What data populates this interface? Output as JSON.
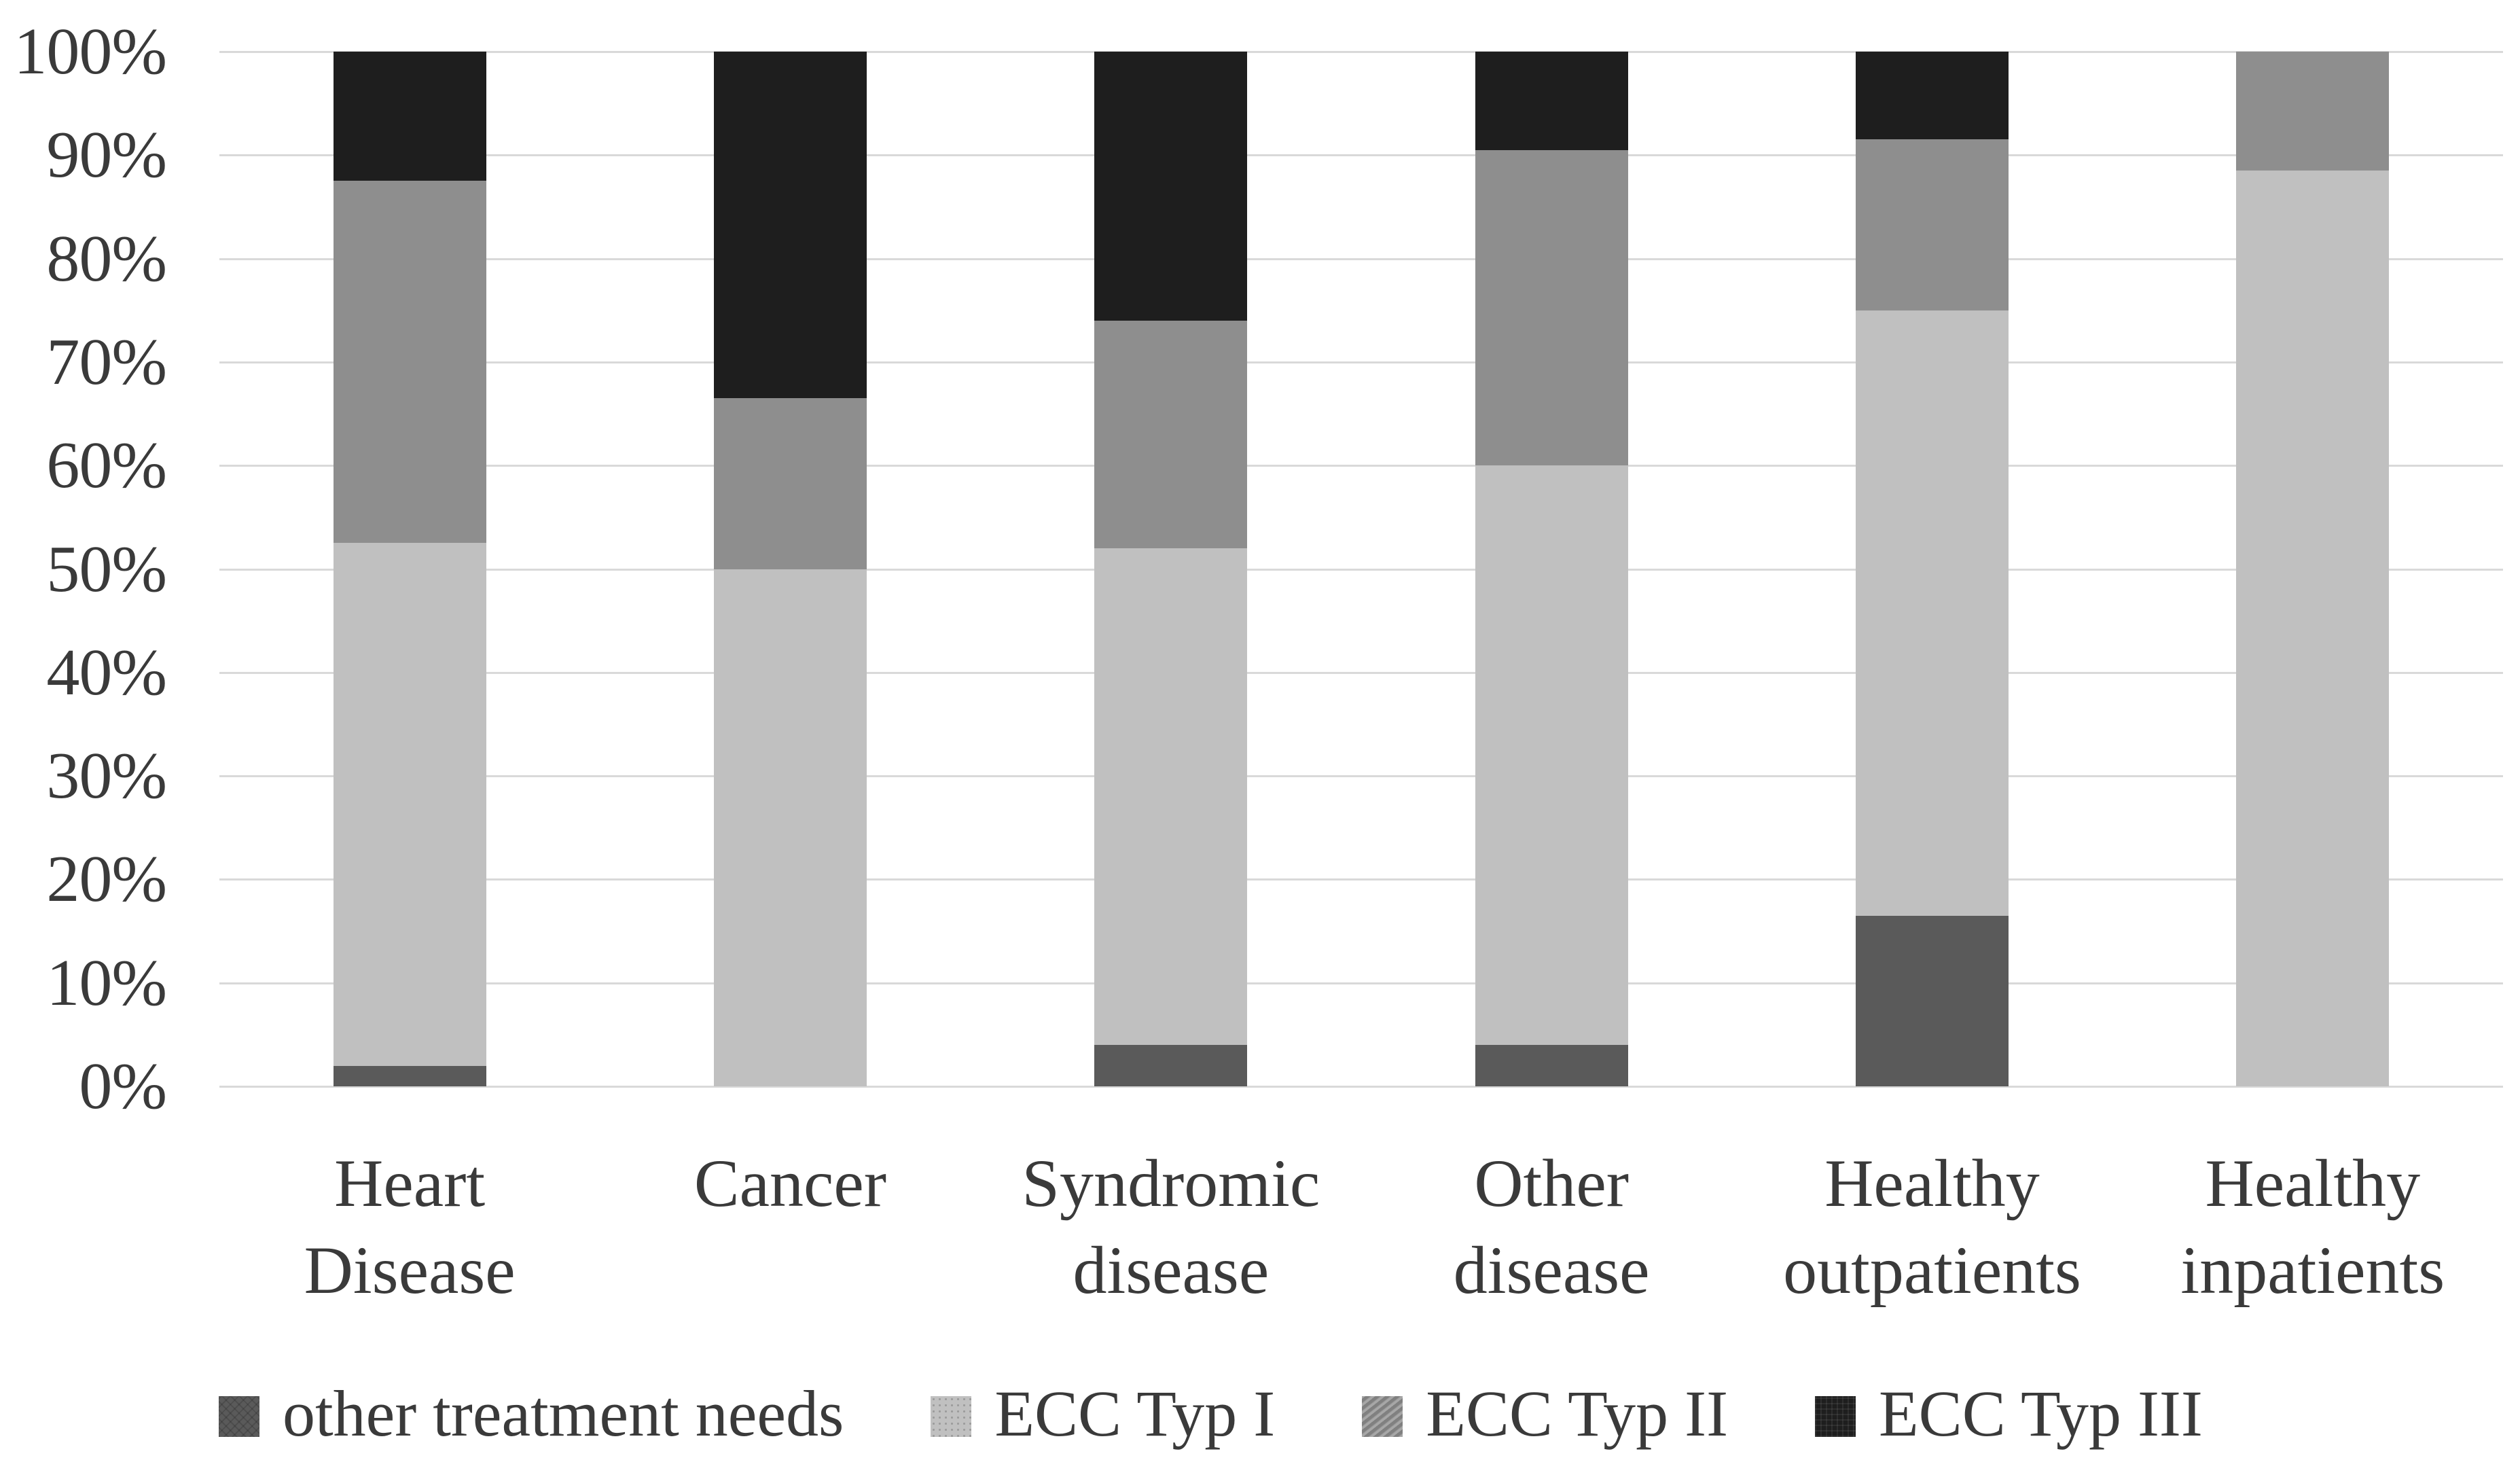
{
  "figure": {
    "background": "#ffffff",
    "text_color": "#3a3a3a",
    "gridline_color": "#d9d9d9"
  },
  "chart_data": {
    "type": "bar",
    "stacked": true,
    "units": "percent",
    "title": "",
    "xlabel": "",
    "ylabel": "",
    "categories": [
      "Heart Disease",
      "Cancer",
      "Syndromic disease",
      "Other disease",
      "Healthy outpatients",
      "Healthy inpatients"
    ],
    "series": [
      {
        "name": "other treatment needs",
        "color": "#5a5a5a",
        "texture": "crosshatch",
        "values": [
          2,
          0,
          4,
          4,
          16.5,
          0
        ]
      },
      {
        "name": "ECC Typ I",
        "color": "#c0c0c0",
        "texture": "dots",
        "values": [
          50.5,
          50,
          48,
          56,
          58.5,
          88.5
        ]
      },
      {
        "name": "ECC Typ II",
        "color": "#8e8e8e",
        "texture": "diagonal-stripes",
        "values": [
          35,
          16.5,
          22,
          30.5,
          16.5,
          11.5
        ]
      },
      {
        "name": "ECC Typ III",
        "color": "#1e1e1e",
        "texture": "fine-grid",
        "values": [
          12.5,
          33.5,
          26,
          9.5,
          8.5,
          0
        ]
      }
    ],
    "y_ticks": [
      "100%",
      "90%",
      "80%",
      "70%",
      "60%",
      "50%",
      "40%",
      "30%",
      "20%",
      "10%",
      "0%"
    ],
    "ylim": [
      0,
      100
    ],
    "grid": true,
    "legend_position": "bottom"
  }
}
